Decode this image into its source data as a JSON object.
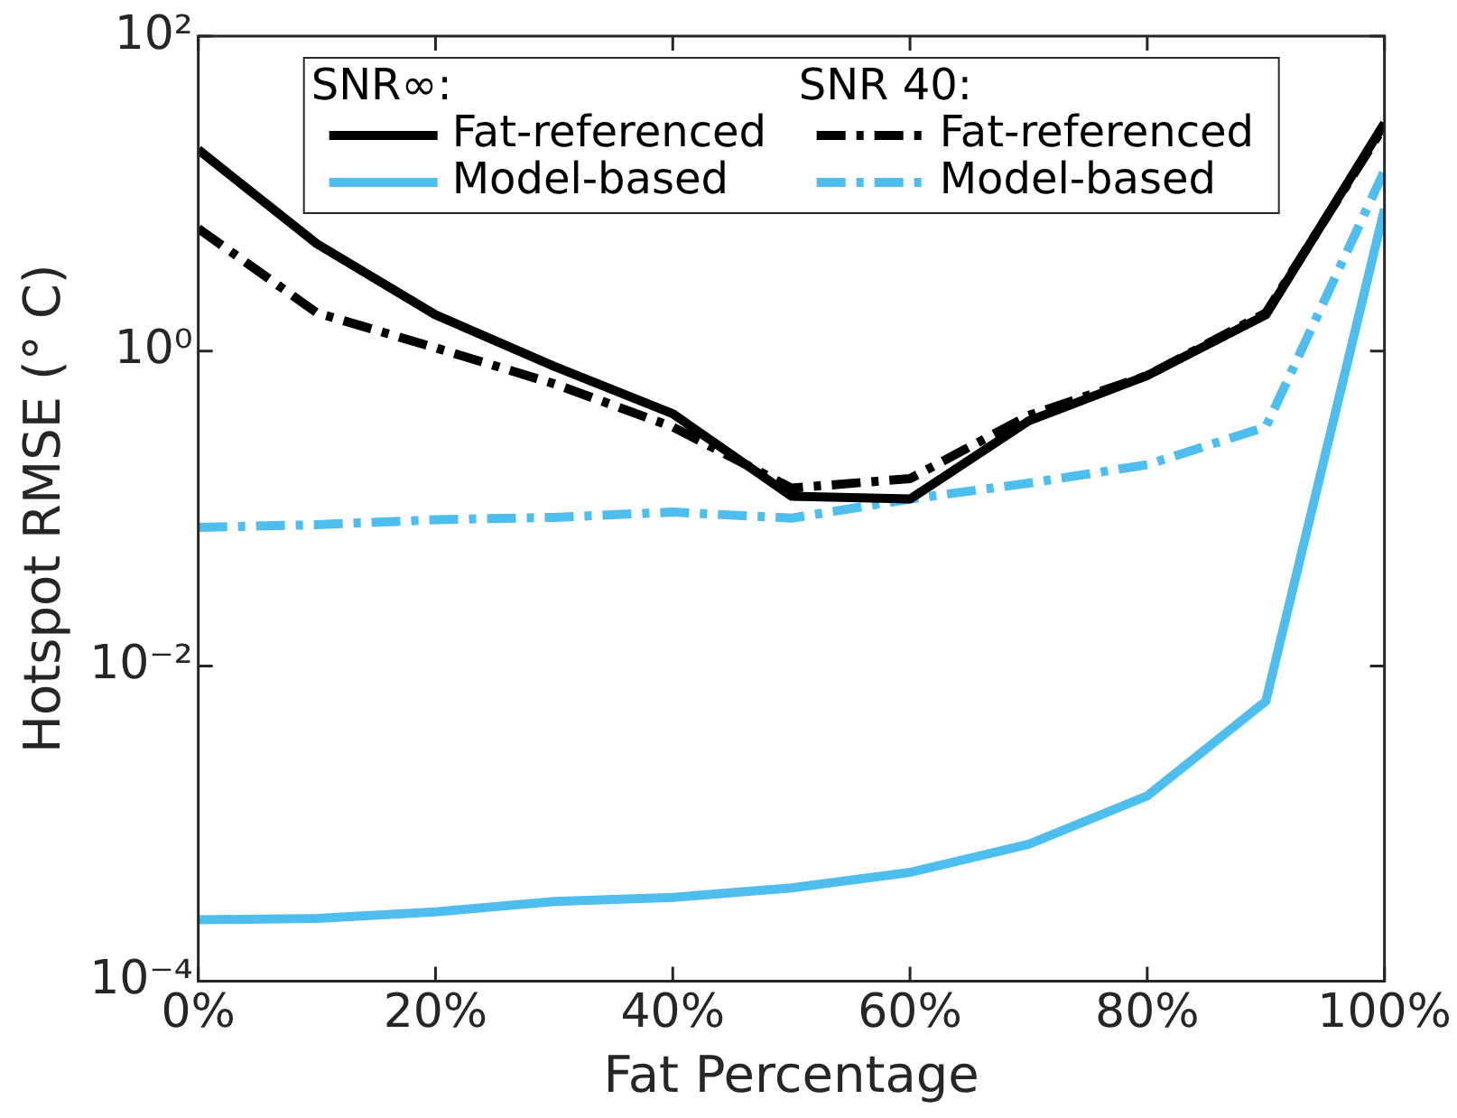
{
  "chart_data": {
    "type": "line",
    "xlabel": "Fat Percentage",
    "ylabel": "Hotspot RMSE (° C)",
    "x": [
      0,
      10,
      20,
      30,
      40,
      50,
      60,
      70,
      80,
      90,
      100
    ],
    "xlim": [
      0,
      100
    ],
    "xticks": [
      {
        "value": 0,
        "label": "0%"
      },
      {
        "value": 20,
        "label": "20%"
      },
      {
        "value": 40,
        "label": "40%"
      },
      {
        "value": 60,
        "label": "60%"
      },
      {
        "value": 80,
        "label": "80%"
      },
      {
        "value": 100,
        "label": "100%"
      }
    ],
    "log": "y",
    "ylim": [
      0.0001,
      100
    ],
    "yticks": [
      {
        "value": 0.0001,
        "label": "10⁻⁴"
      },
      {
        "value": 0.01,
        "label": "10⁻²"
      },
      {
        "value": 1,
        "label": "10⁰"
      },
      {
        "value": 100,
        "label": "10²"
      }
    ],
    "grid": false,
    "legend": "top",
    "marker": "none",
    "annotations": [
      "SNR∞:",
      "SNR 40:"
    ],
    "series": [
      {
        "name": "Fat-referenced",
        "color": "#000000",
        "line_style": "solid",
        "values": [
          19,
          4.8,
          1.7,
          0.8,
          0.4,
          0.12,
          0.115,
          0.36,
          0.7,
          1.7,
          28
        ]
      },
      {
        "name": "Model-based",
        "color": "#4dbeee",
        "line_style": "solid",
        "values": [
          0.000245,
          0.00025,
          0.000275,
          0.00032,
          0.00034,
          0.00039,
          0.00049,
          0.00074,
          0.0015,
          0.006,
          8
        ]
      },
      {
        "name": "Fat-referenced",
        "color": "#000000",
        "line_style": "dashdot",
        "values": [
          6,
          1.75,
          1.05,
          0.62,
          0.33,
          0.135,
          0.155,
          0.39,
          0.7,
          1.75,
          27
        ]
      },
      {
        "name": "Model-based",
        "color": "#4dbeee",
        "line_style": "dashdot",
        "values": [
          0.076,
          0.079,
          0.085,
          0.088,
          0.095,
          0.087,
          0.115,
          0.145,
          0.19,
          0.33,
          14
        ]
      }
    ]
  }
}
